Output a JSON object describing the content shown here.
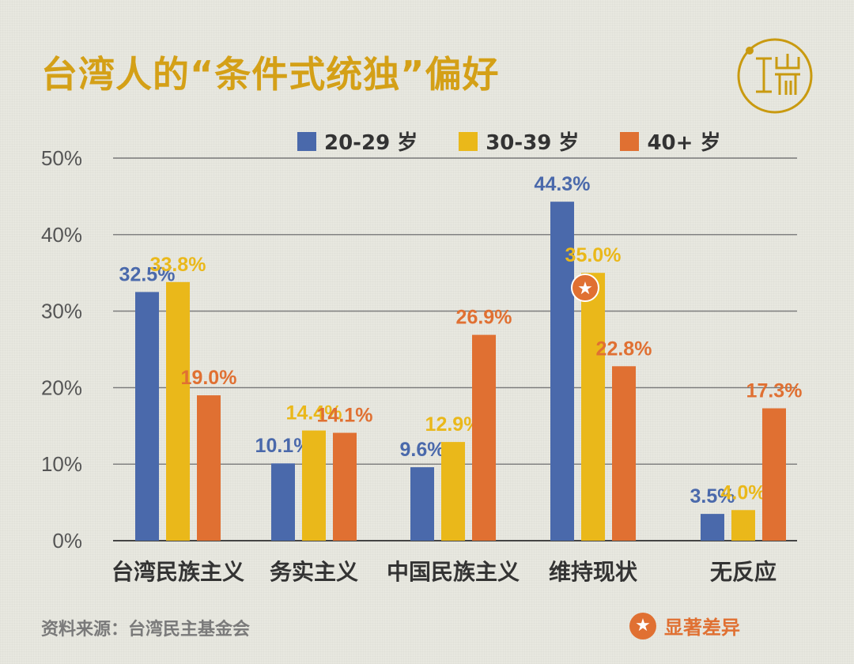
{
  "title": "台湾人的“条件式统独”偏好",
  "source": "资料来源：台湾民主基金会",
  "note_label": "显著差异",
  "logo_icon": "端-logo-icon",
  "colors": {
    "blue": "#4a69ab",
    "yellow": "#eab81a",
    "orange": "#e07032",
    "title": "#d4a017",
    "logo": "#c99a10"
  },
  "chart_data": {
    "type": "bar",
    "categories": [
      "台湾民族主义",
      "务实主义",
      "中国民族主义",
      "维持现状",
      "无反应"
    ],
    "series": [
      {
        "name": "20-29 岁",
        "values": [
          32.5,
          10.1,
          9.6,
          44.3,
          3.5
        ],
        "labels": [
          "32.5%",
          "10.1%",
          "9.6%",
          "44.3%",
          "3.5%"
        ]
      },
      {
        "name": "30-39 岁",
        "values": [
          33.8,
          14.4,
          12.9,
          35.0,
          4.0
        ],
        "labels": [
          "33.8%",
          "14.4%",
          "12.9%",
          "35.0%",
          "4.0%"
        ]
      },
      {
        "name": "40+ 岁",
        "values": [
          19.0,
          14.1,
          26.9,
          22.8,
          17.3
        ],
        "labels": [
          "19.0%",
          "14.1%",
          "26.9%",
          "22.8%",
          "17.3%"
        ]
      }
    ],
    "y_ticks": [
      "0%",
      "10%",
      "20%",
      "30%",
      "40%",
      "50%"
    ],
    "ylim": [
      0,
      50
    ],
    "grid": true,
    "legend_position": "top",
    "annotation": {
      "category_index": 3,
      "series_index": 0,
      "marker": "star"
    }
  }
}
